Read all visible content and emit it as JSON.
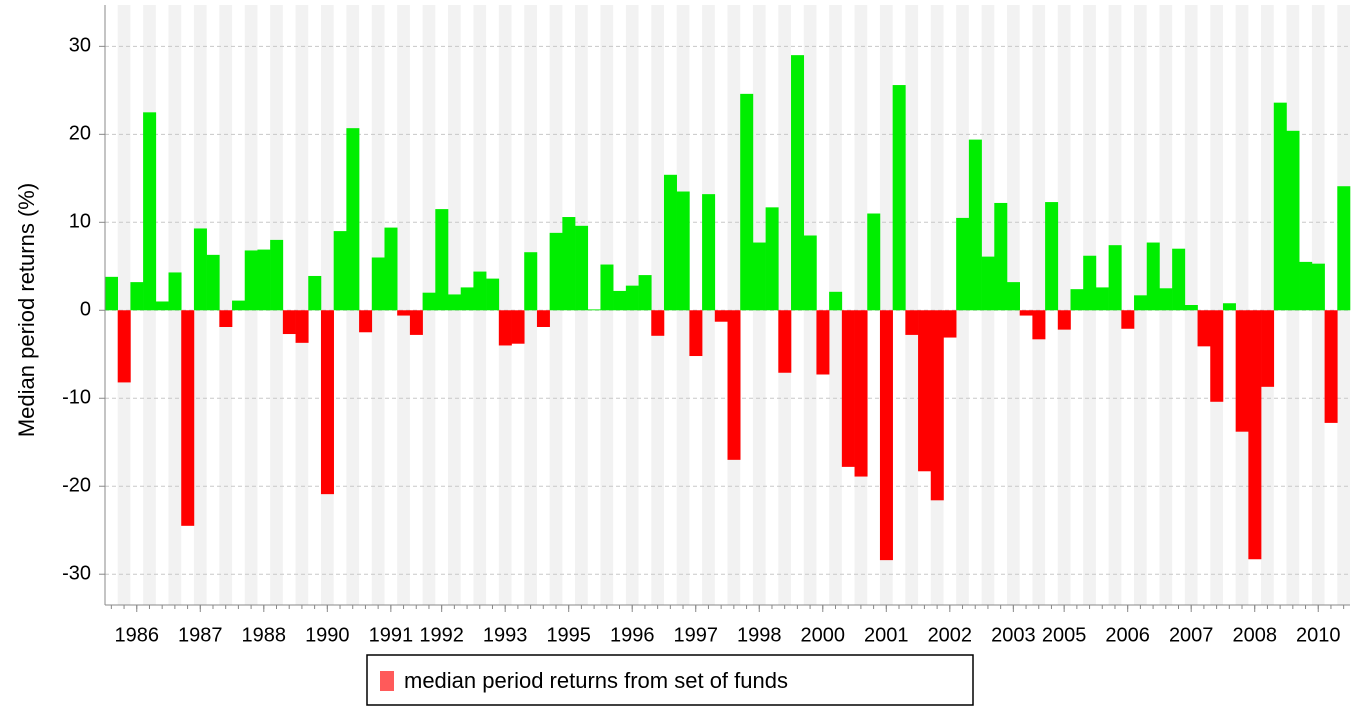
{
  "chart_data": {
    "type": "bar",
    "y_label": "Median  period returns (%)",
    "categories": [
      null,
      null,
      "1986",
      null,
      null,
      null,
      null,
      "1987",
      null,
      null,
      null,
      null,
      "1988",
      null,
      null,
      null,
      null,
      "1990",
      null,
      null,
      null,
      null,
      "1991",
      null,
      null,
      null,
      "1992",
      null,
      null,
      null,
      null,
      "1993",
      null,
      null,
      null,
      null,
      "1995",
      null,
      null,
      null,
      null,
      "1996",
      null,
      null,
      null,
      null,
      "1997",
      null,
      null,
      null,
      null,
      "1998",
      null,
      null,
      null,
      null,
      "2000",
      null,
      null,
      null,
      null,
      "2001",
      null,
      null,
      null,
      null,
      "2002",
      null,
      null,
      null,
      null,
      "2003",
      null,
      null,
      null,
      "2005",
      null,
      null,
      null,
      null,
      "2006",
      null,
      null,
      null,
      null,
      "2007",
      null,
      null,
      null,
      null,
      "2008",
      null,
      null,
      null,
      null,
      "2010",
      null,
      null
    ],
    "series": [
      {
        "name": "median period returns from set of funds",
        "color": "#ff5a5a",
        "positive_color": "#00ee00",
        "negative_color": "#ff0000",
        "values": [
          3.8,
          -8.2,
          3.2,
          22.5,
          1.0,
          4.3,
          -24.5,
          9.3,
          6.3,
          -1.9,
          1.1,
          6.8,
          6.9,
          8.0,
          -2.7,
          -3.7,
          3.9,
          -20.9,
          9.0,
          20.7,
          -2.5,
          6.0,
          9.4,
          -0.6,
          -2.8,
          2.0,
          11.5,
          1.8,
          2.6,
          4.4,
          3.6,
          -4.0,
          -3.8,
          6.6,
          -1.9,
          8.8,
          10.6,
          9.6,
          0.1,
          5.2,
          2.2,
          2.8,
          4.0,
          -2.9,
          15.4,
          13.5,
          -5.2,
          13.2,
          -1.3,
          -17.0,
          24.6,
          7.7,
          11.7,
          -7.1,
          29.0,
          8.5,
          -7.3,
          2.1,
          -17.8,
          -18.9,
          11.0,
          -28.4,
          25.6,
          -2.8,
          -18.3,
          -21.6,
          -3.1,
          10.5,
          19.4,
          6.1,
          12.2,
          3.2,
          -0.6,
          -3.3,
          12.3,
          -2.2,
          2.4,
          6.2,
          2.6,
          7.4,
          -2.1,
          1.7,
          7.7,
          2.5,
          7.0,
          0.6,
          -4.1,
          -10.4,
          0.8,
          -13.8,
          -28.3,
          -8.7,
          23.6,
          20.4,
          5.5,
          5.3,
          -12.8,
          14.1
        ]
      }
    ],
    "ylim": [
      -33.5,
      34.7
    ],
    "yticks": [
      -30,
      -20,
      -10,
      0,
      10,
      20,
      30
    ],
    "grid": true,
    "legend": "bottom"
  }
}
